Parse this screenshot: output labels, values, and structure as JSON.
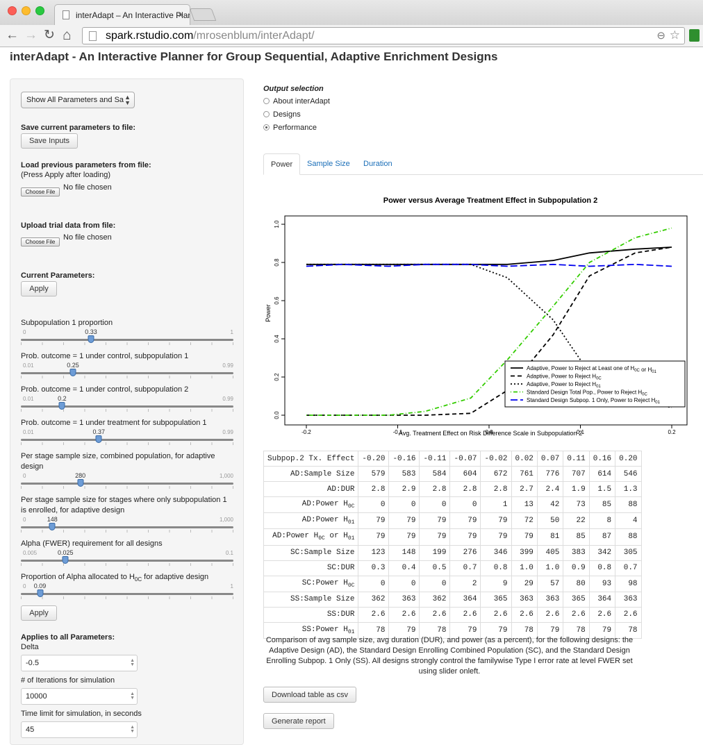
{
  "browser": {
    "tab_title": "interAdapt – An Interactive Plan",
    "tab_close": "×",
    "url_host": "spark.rstudio.com",
    "url_path": "/mrosenblum/interAdapt/",
    "back": "←",
    "forward": "→",
    "reload": "↻",
    "home": "⌂",
    "zoom": "⊖",
    "star": "☆"
  },
  "page": {
    "title": "interAdapt - An Interactive Planner for Group Sequential, Adaptive Enrichment Designs"
  },
  "sidebar": {
    "select_value": "Show All Parameters and Sa",
    "save_label": "Save current parameters to file:",
    "save_button": "Save Inputs",
    "load_label": "Load previous parameters from file:",
    "load_note": "(Press Apply after loading)",
    "choose_file": "Choose File",
    "no_file": "No file chosen",
    "upload_label": "Upload trial data from file:",
    "current_label": "Current Parameters:",
    "apply": "Apply",
    "sliders": [
      {
        "label": "Subpopulation 1 proportion",
        "min": "0",
        "max": "1",
        "value": "0.33",
        "frac": 0.33
      },
      {
        "label": "Prob. outcome = 1 under control, subpopulation 1",
        "min": "0.01",
        "max": "0.99",
        "value": "0.25",
        "frac": 0.245
      },
      {
        "label": "Prob. outcome = 1 under control, subpopulation 2",
        "min": "0.01",
        "max": "0.99",
        "value": "0.2",
        "frac": 0.194
      },
      {
        "label": "Prob. outcome = 1 under treatment for subpopulation 1",
        "min": "0.01",
        "max": "0.99",
        "value": "0.37",
        "frac": 0.367
      },
      {
        "label": "Per stage sample size, combined population, for adaptive design",
        "min": "0",
        "max": "1,000",
        "value": "280",
        "frac": 0.28
      },
      {
        "label": "Per stage sample size for stages where only subpopulation 1 is enrolled, for adaptive design",
        "min": "0",
        "max": "1,000",
        "value": "148",
        "frac": 0.148
      },
      {
        "label": "Alpha (FWER) requirement for all designs",
        "min": "0.005",
        "max": "0.1",
        "value": "0.025",
        "frac": 0.21
      },
      {
        "label": "Proportion of Alpha allocated to H0C for adaptive design",
        "min": "0",
        "max": "1",
        "value": "0.09",
        "frac": 0.09
      }
    ],
    "applies_label": "Applies to all Parameters:",
    "inputs": [
      {
        "label": "Delta",
        "value": "-0.5"
      },
      {
        "label": "# of Iterations for simulation",
        "value": "10000"
      },
      {
        "label": "Time limit for simulation, in seconds",
        "value": "45"
      }
    ]
  },
  "main": {
    "output_title": "Output selection",
    "radios": [
      {
        "label": "About interAdapt",
        "checked": false
      },
      {
        "label": "Designs",
        "checked": false
      },
      {
        "label": "Performance",
        "checked": true
      }
    ],
    "tabs": [
      "Power",
      "Sample Size",
      "Duration"
    ],
    "table_header": [
      "Subpop.2 Tx. Effect",
      "-0.20",
      "-0.16",
      "-0.11",
      "-0.07",
      "-0.02",
      "0.02",
      "0.07",
      "0.11",
      "0.16",
      "0.20"
    ],
    "table_rows": [
      {
        "label": "AD:Sample Size",
        "values": [
          "579",
          "583",
          "584",
          "604",
          "672",
          "761",
          "776",
          "707",
          "614",
          "546"
        ]
      },
      {
        "label": "AD:DUR",
        "values": [
          "2.8",
          "2.9",
          "2.8",
          "2.8",
          "2.8",
          "2.7",
          "2.4",
          "1.9",
          "1.5",
          "1.3"
        ]
      },
      {
        "label": "AD:Power H0C",
        "values": [
          "0",
          "0",
          "0",
          "0",
          "1",
          "13",
          "42",
          "73",
          "85",
          "88"
        ]
      },
      {
        "label": "AD:Power H01",
        "values": [
          "79",
          "79",
          "79",
          "79",
          "79",
          "72",
          "50",
          "22",
          "8",
          "4"
        ]
      },
      {
        "label": "AD:Power H0C or H01",
        "values": [
          "79",
          "79",
          "79",
          "79",
          "79",
          "79",
          "81",
          "85",
          "87",
          "88"
        ]
      },
      {
        "label": "SC:Sample Size",
        "values": [
          "123",
          "148",
          "199",
          "276",
          "346",
          "399",
          "405",
          "383",
          "342",
          "305"
        ]
      },
      {
        "label": "SC:DUR",
        "values": [
          "0.3",
          "0.4",
          "0.5",
          "0.7",
          "0.8",
          "1.0",
          "1.0",
          "0.9",
          "0.8",
          "0.7"
        ]
      },
      {
        "label": "SC:Power H0C",
        "values": [
          "0",
          "0",
          "0",
          "2",
          "9",
          "29",
          "57",
          "80",
          "93",
          "98"
        ]
      },
      {
        "label": "SS:Sample Size",
        "values": [
          "362",
          "363",
          "362",
          "364",
          "365",
          "363",
          "363",
          "365",
          "364",
          "363"
        ]
      },
      {
        "label": "SS:DUR",
        "values": [
          "2.6",
          "2.6",
          "2.6",
          "2.6",
          "2.6",
          "2.6",
          "2.6",
          "2.6",
          "2.6",
          "2.6"
        ]
      },
      {
        "label": "SS:Power H01",
        "values": [
          "78",
          "79",
          "78",
          "79",
          "79",
          "78",
          "79",
          "78",
          "79",
          "78"
        ]
      }
    ],
    "caption": "Comparison of avg sample size, avg duration (DUR), and power (as a percent), for the following designs: the Adaptive Design (AD), the Standard Design Enrolling Combined Population (SC), and the Standard Design Enrolling Subpop. 1 Only (SS). All designs strongly control the familywise Type I error rate at level FWER set using slider onleft.",
    "download_button": "Download table as csv",
    "report_button": "Generate report"
  },
  "chart_data": {
    "type": "line",
    "title": "Power versus Average Treatment Effect in Subpopulation 2",
    "xlabel": "Avg. Treatment Effect on Risk Difference Scale in Subpopulation 2",
    "ylabel": "Power",
    "xlim": [
      -0.2,
      0.2
    ],
    "ylim": [
      0,
      1
    ],
    "xticks": [
      "-0.2",
      "-0.1",
      "0.0",
      "0.1",
      "0.2"
    ],
    "yticks": [
      "0.0",
      "0.2",
      "0.4",
      "0.6",
      "0.8",
      "1.0"
    ],
    "grid": false,
    "legend_position": "bottom-right",
    "x": [
      -0.2,
      -0.16,
      -0.11,
      -0.07,
      -0.02,
      0.02,
      0.07,
      0.11,
      0.16,
      0.2
    ],
    "series": [
      {
        "name": "Adaptive, Power to Reject at Least one of H0C or H01",
        "color": "#000000",
        "dash": "solid",
        "values": [
          0.79,
          0.79,
          0.79,
          0.79,
          0.79,
          0.79,
          0.81,
          0.85,
          0.87,
          0.88
        ]
      },
      {
        "name": "Adaptive, Power to Reject H0C",
        "color": "#000000",
        "dash": "dashed",
        "values": [
          0,
          0,
          0,
          0,
          0.01,
          0.13,
          0.42,
          0.73,
          0.85,
          0.88
        ]
      },
      {
        "name": "Adaptive, Power to Reject H01",
        "color": "#000000",
        "dash": "dotted",
        "values": [
          0.79,
          0.79,
          0.79,
          0.79,
          0.79,
          0.72,
          0.5,
          0.22,
          0.08,
          0.04
        ]
      },
      {
        "name": "Standard Design Total Pop., Power to Reject H0C",
        "color": "#33cc00",
        "dash": "dotdash",
        "values": [
          0,
          0,
          0,
          0.02,
          0.09,
          0.29,
          0.57,
          0.8,
          0.93,
          0.98
        ]
      },
      {
        "name": "Standard Design Subpop. 1 Only, Power to Reject H01",
        "color": "#0000ee",
        "dash": "longdash",
        "values": [
          0.78,
          0.79,
          0.78,
          0.79,
          0.79,
          0.78,
          0.79,
          0.78,
          0.79,
          0.78
        ]
      }
    ]
  }
}
